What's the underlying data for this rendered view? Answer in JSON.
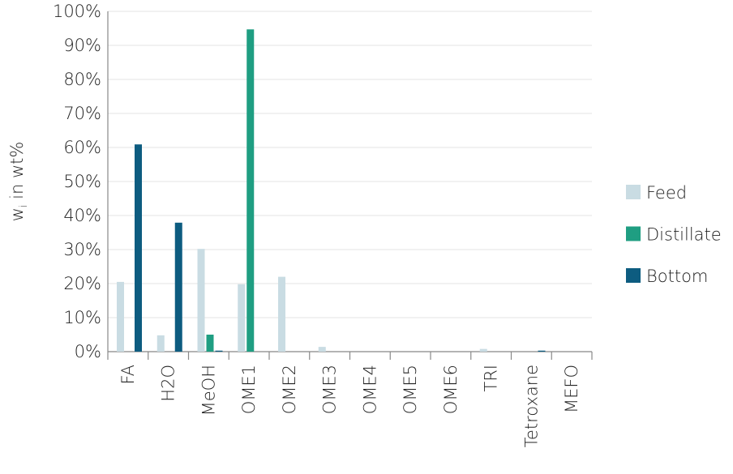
{
  "chart_data": {
    "type": "bar",
    "y_label": [
      "w",
      "i",
      " in wt%"
    ],
    "categories": [
      "FA",
      "H2O",
      "MeOH",
      "OME1",
      "OME2",
      "OME3",
      "OME4",
      "OME5",
      "OME6",
      "TRI",
      "Tetroxane",
      "MEFO"
    ],
    "series": [
      {
        "name": "Feed",
        "color": "#c9dce3",
        "values": [
          20.5,
          4.8,
          30.2,
          19.8,
          22,
          1.4,
          0,
          0,
          0,
          0.8,
          0,
          0
        ]
      },
      {
        "name": "Distillate",
        "color": "#1f9e82",
        "values": [
          0,
          0,
          5,
          94.7,
          0,
          0,
          0,
          0,
          0,
          0,
          0,
          0
        ]
      },
      {
        "name": "Bottom",
        "color": "#0d5c80",
        "values": [
          60.9,
          37.9,
          0.3,
          0,
          0,
          0,
          0,
          0,
          0,
          0,
          0.3,
          0
        ]
      }
    ],
    "ylim": [
      0,
      100
    ],
    "yticks": [
      {
        "value": 0,
        "label": "0%"
      },
      {
        "value": 10,
        "label": "10%"
      },
      {
        "value": 20,
        "label": "20%"
      },
      {
        "value": 30,
        "label": "30%"
      },
      {
        "value": 40,
        "label": "40%"
      },
      {
        "value": 50,
        "label": "50%"
      },
      {
        "value": 60,
        "label": "60%"
      },
      {
        "value": 70,
        "label": "70%"
      },
      {
        "value": 80,
        "label": "80%"
      },
      {
        "value": 90,
        "label": "90%"
      },
      {
        "value": 100,
        "label": "100%"
      }
    ],
    "grid": true,
    "legend": "right"
  }
}
